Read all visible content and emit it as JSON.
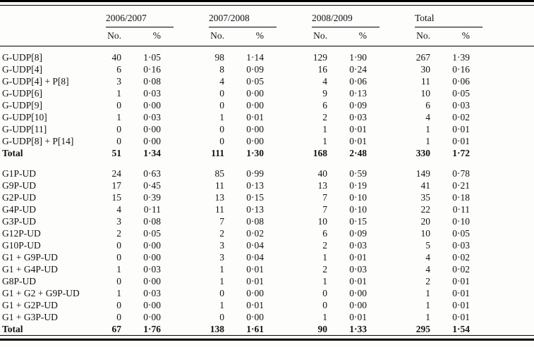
{
  "table": {
    "sub_no": "No.",
    "sub_pct": "%",
    "groups": [
      {
        "label": "2006/2007"
      },
      {
        "label": "2007/2008"
      },
      {
        "label": "2008/2009"
      },
      {
        "label": "Total"
      }
    ],
    "sections": [
      {
        "rows": [
          {
            "label": "G-UDP[8]",
            "bold": false,
            "values": [
              "40",
              "1·05",
              "98",
              "1·14",
              "129",
              "1·90",
              "267",
              "1·39"
            ]
          },
          {
            "label": "G-UDP[4]",
            "bold": false,
            "values": [
              "6",
              "0·16",
              "8",
              "0·09",
              "16",
              "0·24",
              "30",
              "0·16"
            ]
          },
          {
            "label": "G-UDP[4] + P[8]",
            "bold": false,
            "values": [
              "3",
              "0·08",
              "4",
              "0·05",
              "4",
              "0·06",
              "11",
              "0·06"
            ]
          },
          {
            "label": "G-UDP[6]",
            "bold": false,
            "values": [
              "1",
              "0·03",
              "0",
              "0·00",
              "9",
              "0·13",
              "10",
              "0·05"
            ]
          },
          {
            "label": "G-UDP[9]",
            "bold": false,
            "values": [
              "0",
              "0·00",
              "0",
              "0·00",
              "6",
              "0·09",
              "6",
              "0·03"
            ]
          },
          {
            "label": "G-UDP[10]",
            "bold": false,
            "values": [
              "1",
              "0·03",
              "1",
              "0·01",
              "2",
              "0·03",
              "4",
              "0·02"
            ]
          },
          {
            "label": "G-UDP[11]",
            "bold": false,
            "values": [
              "0",
              "0·00",
              "0",
              "0·00",
              "1",
              "0·01",
              "1",
              "0·01"
            ]
          },
          {
            "label": "G-UDP[8] + P[14]",
            "bold": false,
            "values": [
              "0",
              "0·00",
              "0",
              "0·00",
              "1",
              "0·01",
              "1",
              "0·01"
            ]
          },
          {
            "label": "Total",
            "bold": true,
            "values": [
              "51",
              "1·34",
              "111",
              "1·30",
              "168",
              "2·48",
              "330",
              "1·72"
            ]
          }
        ]
      },
      {
        "rows": [
          {
            "label": "G1P-UD",
            "bold": false,
            "values": [
              "24",
              "0·63",
              "85",
              "0·99",
              "40",
              "0·59",
              "149",
              "0·78"
            ]
          },
          {
            "label": "G9P-UD",
            "bold": false,
            "values": [
              "17",
              "0·45",
              "11",
              "0·13",
              "13",
              "0·19",
              "41",
              "0·21"
            ]
          },
          {
            "label": "G2P-UD",
            "bold": false,
            "values": [
              "15",
              "0·39",
              "13",
              "0·15",
              "7",
              "0·10",
              "35",
              "0·18"
            ]
          },
          {
            "label": "G4P-UD",
            "bold": false,
            "values": [
              "4",
              "0·11",
              "11",
              "0·13",
              "7",
              "0·10",
              "22",
              "0·11"
            ]
          },
          {
            "label": "G3P-UD",
            "bold": false,
            "values": [
              "3",
              "0·08",
              "7",
              "0·08",
              "10",
              "0·15",
              "20",
              "0·10"
            ]
          },
          {
            "label": "G12P-UD",
            "bold": false,
            "values": [
              "2",
              "0·05",
              "2",
              "0·02",
              "6",
              "0·09",
              "10",
              "0·05"
            ]
          },
          {
            "label": "G10P-UD",
            "bold": false,
            "values": [
              "0",
              "0·00",
              "3",
              "0·04",
              "2",
              "0·03",
              "5",
              "0·03"
            ]
          },
          {
            "label": "G1 + G9P-UD",
            "bold": false,
            "values": [
              "0",
              "0·00",
              "3",
              "0·04",
              "1",
              "0·01",
              "4",
              "0·02"
            ]
          },
          {
            "label": "G1 + G4P-UD",
            "bold": false,
            "values": [
              "1",
              "0·03",
              "1",
              "0·01",
              "2",
              "0·03",
              "4",
              "0·02"
            ]
          },
          {
            "label": "G8P-UD",
            "bold": false,
            "values": [
              "0",
              "0·00",
              "1",
              "0·01",
              "1",
              "0·01",
              "2",
              "0·01"
            ]
          },
          {
            "label": "G1 + G2 + G9P-UD",
            "bold": false,
            "values": [
              "1",
              "0·03",
              "0",
              "0·00",
              "0",
              "0·00",
              "1",
              "0·01"
            ]
          },
          {
            "label": "G1 + G2P-UD",
            "bold": false,
            "values": [
              "0",
              "0·00",
              "1",
              "0·01",
              "0",
              "0·00",
              "1",
              "0·01"
            ]
          },
          {
            "label": "G1 + G3P-UD",
            "bold": false,
            "values": [
              "0",
              "0·00",
              "0",
              "0·00",
              "1",
              "0·01",
              "1",
              "0·01"
            ]
          },
          {
            "label": "Total",
            "bold": true,
            "values": [
              "67",
              "1·76",
              "138",
              "1·61",
              "90",
              "1·33",
              "295",
              "1·54"
            ]
          }
        ]
      }
    ]
  },
  "colors": {
    "text": "#121212",
    "background": "#fdfdfc",
    "rule": "#000000"
  }
}
